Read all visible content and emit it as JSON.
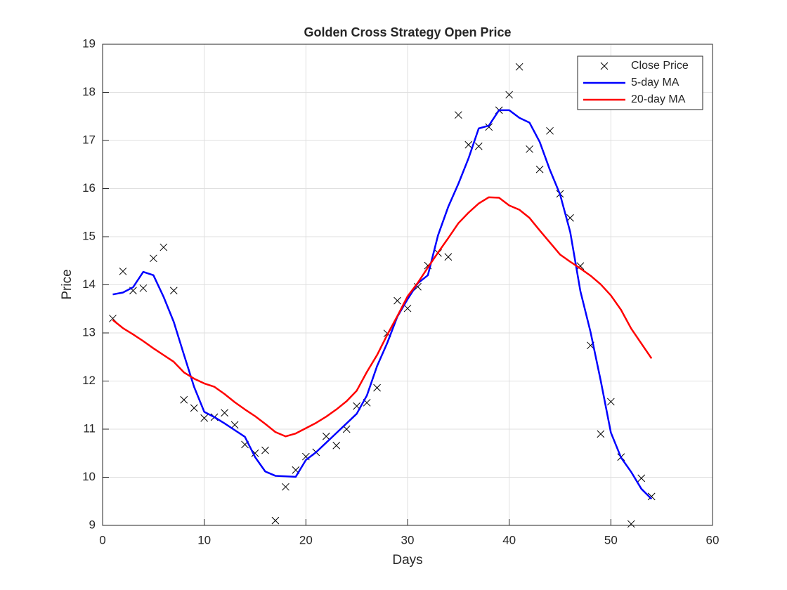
{
  "chart_data": {
    "type": "line",
    "title": "Golden Cross Strategy Open Price",
    "x_label": "Days",
    "y_label": "Price",
    "x": [
      1,
      2,
      3,
      4,
      5,
      6,
      7,
      8,
      9,
      10,
      11,
      12,
      13,
      14,
      15,
      16,
      17,
      18,
      19,
      20,
      21,
      22,
      23,
      24,
      25,
      26,
      27,
      28,
      29,
      30,
      31,
      32,
      33,
      34,
      35,
      36,
      37,
      38,
      39,
      40,
      41,
      42,
      43,
      44,
      45,
      46,
      47,
      48,
      49,
      50,
      51,
      52,
      53,
      54
    ],
    "series": [
      {
        "name": "Close Price",
        "color": "#000000",
        "style": "markers",
        "marker": "x",
        "values": [
          13.3,
          14.28,
          13.88,
          13.93,
          14.55,
          14.78,
          13.88,
          11.61,
          11.44,
          11.23,
          11.25,
          11.34,
          11.09,
          10.68,
          10.5,
          10.56,
          9.1,
          9.8,
          10.15,
          10.43,
          10.52,
          10.85,
          10.66,
          11.0,
          11.48,
          11.55,
          11.86,
          12.99,
          13.67,
          13.51,
          13.96,
          14.4,
          14.66,
          14.58,
          17.53,
          16.91,
          16.88,
          17.28,
          17.63,
          17.95,
          18.53,
          16.82,
          16.4,
          17.2,
          15.89,
          15.39,
          14.39,
          12.74,
          10.9,
          11.57,
          10.42,
          9.03,
          9.98,
          9.6
        ]
      },
      {
        "name": "5-day MA",
        "color": "#0000ff",
        "style": "line",
        "values": [
          13.8,
          13.84,
          13.95,
          14.27,
          14.2,
          13.75,
          13.23,
          12.55,
          11.88,
          11.36,
          11.25,
          11.12,
          10.98,
          10.84,
          10.42,
          10.12,
          10.03,
          10.02,
          10.01,
          10.36,
          10.52,
          10.72,
          10.92,
          11.12,
          11.32,
          11.7,
          12.31,
          12.79,
          13.34,
          13.7,
          14.03,
          14.2,
          15.03,
          15.62,
          16.1,
          16.63,
          17.25,
          17.31,
          17.63,
          17.63,
          17.47,
          17.37,
          16.97,
          16.39,
          15.88,
          15.1,
          13.87,
          13.02,
          12.01,
          10.93,
          10.41,
          10.11,
          9.76,
          9.55
        ]
      },
      {
        "name": "20-day MA",
        "color": "#ff0000",
        "style": "line",
        "values": [
          13.27,
          13.1,
          12.97,
          12.83,
          12.68,
          12.54,
          12.4,
          12.18,
          12.05,
          11.95,
          11.88,
          11.73,
          11.56,
          11.41,
          11.27,
          11.11,
          10.94,
          10.85,
          10.91,
          11.02,
          11.13,
          11.26,
          11.41,
          11.58,
          11.8,
          12.19,
          12.54,
          12.96,
          13.35,
          13.76,
          14.04,
          14.36,
          14.67,
          14.97,
          15.28,
          15.5,
          15.69,
          15.82,
          15.81,
          15.65,
          15.56,
          15.39,
          15.13,
          14.88,
          14.63,
          14.48,
          14.34,
          14.19,
          14.01,
          13.78,
          13.48,
          13.09,
          12.78,
          12.47
        ]
      }
    ],
    "xlim": [
      0,
      60
    ],
    "xticks": [
      0,
      10,
      20,
      30,
      40,
      50,
      60
    ],
    "ylim": [
      9,
      19
    ],
    "yticks": [
      9,
      10,
      11,
      12,
      13,
      14,
      15,
      16,
      17,
      18,
      19
    ],
    "grid": true,
    "legend": "top-right"
  }
}
